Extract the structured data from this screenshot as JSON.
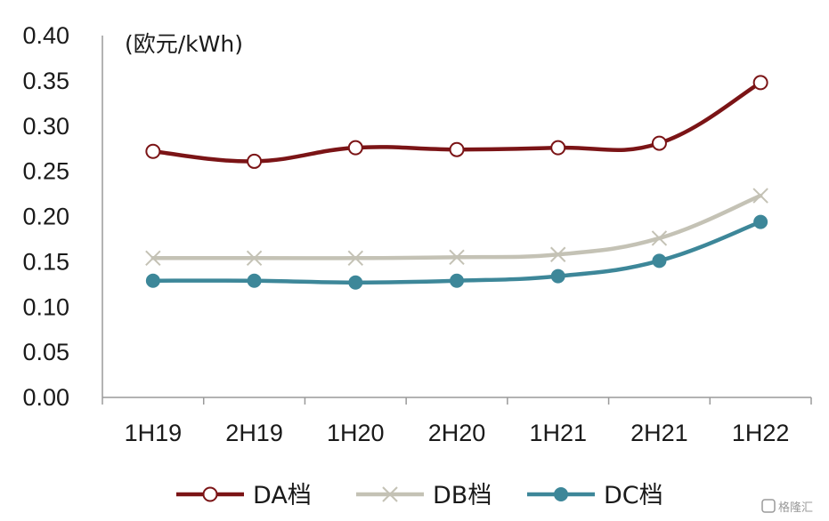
{
  "chart_data": {
    "type": "line",
    "unit_label": "(欧元/kWh)",
    "categories": [
      "1H19",
      "2H19",
      "1H20",
      "2H20",
      "1H21",
      "2H21",
      "1H22"
    ],
    "ylim": [
      0,
      0.4
    ],
    "yticks": [
      "0.00",
      "0.05",
      "0.10",
      "0.15",
      "0.20",
      "0.25",
      "0.30",
      "0.35",
      "0.40"
    ],
    "grid": false,
    "legend_position": "bottom",
    "series": [
      {
        "name": "DA档",
        "values": [
          0.272,
          0.261,
          0.276,
          0.274,
          0.276,
          0.281,
          0.348
        ],
        "color": "#7b1416",
        "marker": "open-circle"
      },
      {
        "name": "DB档",
        "values": [
          0.154,
          0.154,
          0.154,
          0.155,
          0.158,
          0.176,
          0.223
        ],
        "color": "#c4c2b5",
        "marker": "x"
      },
      {
        "name": "DC档",
        "values": [
          0.129,
          0.129,
          0.127,
          0.129,
          0.134,
          0.151,
          0.194
        ],
        "color": "#3d8799",
        "marker": "filled-circle"
      }
    ]
  },
  "watermark": {
    "text": "格隆汇",
    "icon": "watermark-logo-icon"
  }
}
